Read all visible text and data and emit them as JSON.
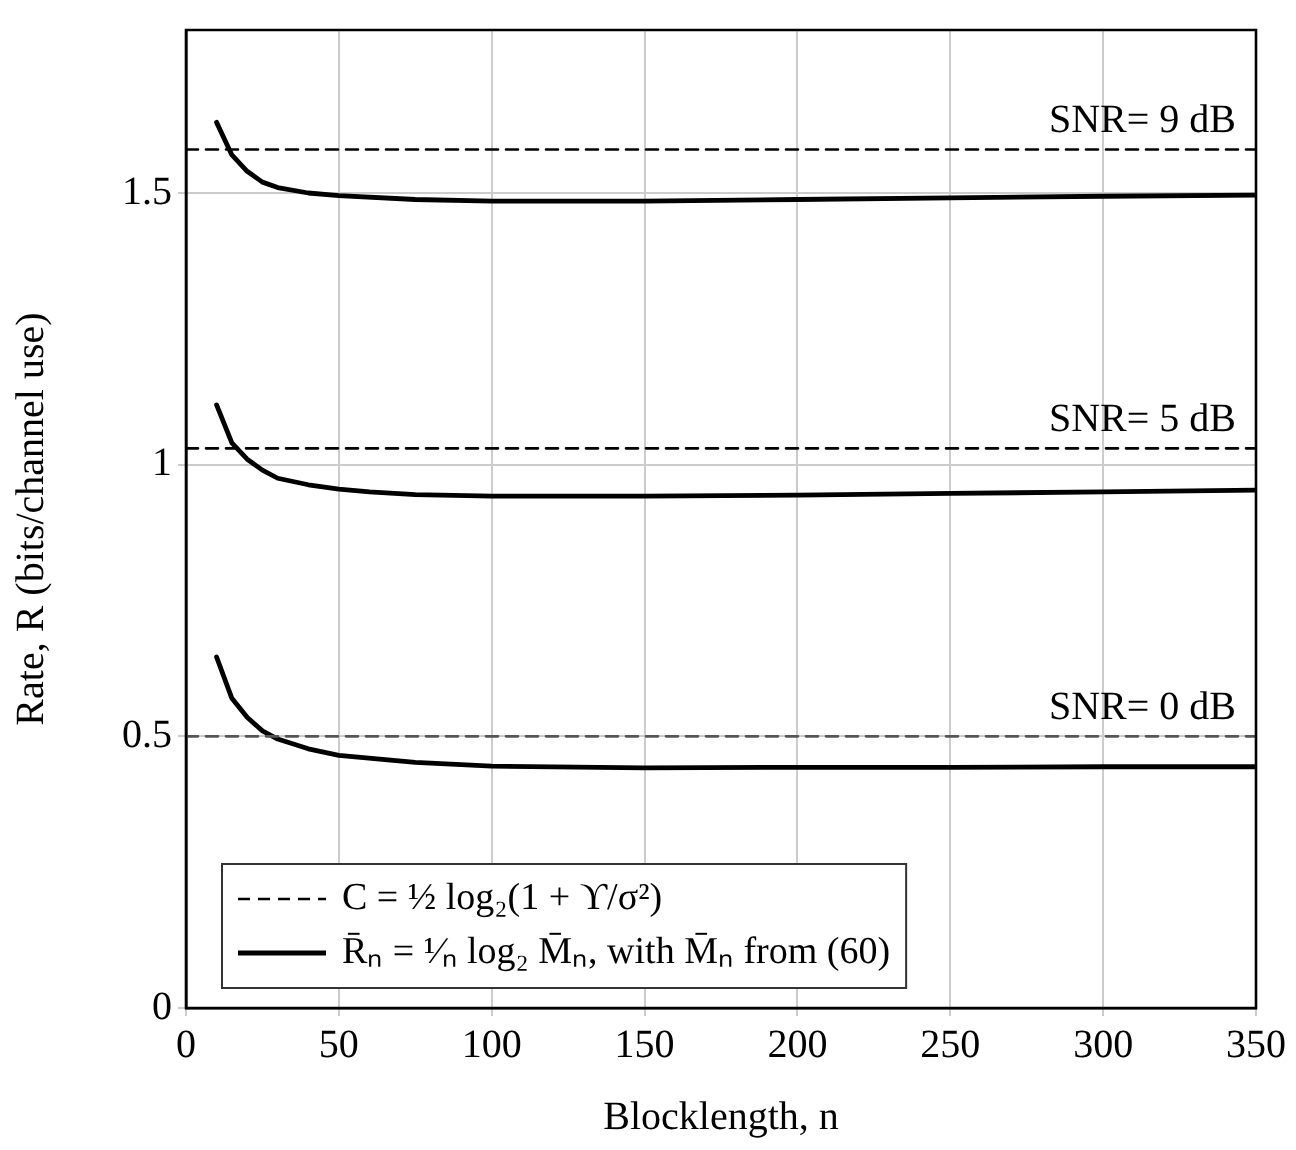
{
  "chart_data": {
    "type": "line",
    "xlabel": "Blocklength, n",
    "ylabel": "Rate, R (bits/channel use)",
    "xlim": [
      0,
      350
    ],
    "xticks": [
      0,
      50,
      100,
      150,
      200,
      250,
      300,
      350
    ],
    "ylim": [
      0,
      1.8
    ],
    "yticks": [
      0,
      0.5,
      1,
      1.5
    ],
    "grid": true,
    "legend": "bottom left",
    "marker": "none",
    "series": [
      {
        "name": "C = ½ log₂(1 + ϒ/σ²)",
        "color": "#000000",
        "line_style": "dashed",
        "x": [
          0,
          350
        ],
        "values": [
          1.58,
          1.58
        ]
      },
      {
        "color": "#000000",
        "line_style": "dashed",
        "x": [
          0,
          350
        ],
        "values": [
          1.03,
          1.03
        ]
      },
      {
        "color": "#555555",
        "line_style": "dashed",
        "x": [
          0,
          350
        ],
        "values": [
          0.5,
          0.5
        ]
      },
      {
        "name": "R̄ₙ = ¹⁄ₙ log₂ M̄ₙ, with M̄ₙ from (60)",
        "color": "#000000",
        "line_style": "solid",
        "x": [
          10,
          15,
          20,
          25,
          30,
          40,
          50,
          75,
          100,
          150,
          200,
          250,
          300,
          350
        ],
        "values": [
          1.63,
          1.57,
          1.54,
          1.52,
          1.51,
          1.5,
          1.495,
          1.488,
          1.485,
          1.485,
          1.488,
          1.491,
          1.494,
          1.496
        ]
      },
      {
        "color": "#000000",
        "line_style": "solid",
        "x": [
          10,
          15,
          20,
          25,
          30,
          40,
          50,
          60,
          75,
          100,
          150,
          200,
          250,
          300,
          350
        ],
        "values": [
          1.11,
          1.04,
          1.01,
          0.99,
          0.975,
          0.963,
          0.955,
          0.95,
          0.945,
          0.942,
          0.942,
          0.944,
          0.947,
          0.95,
          0.953
        ]
      },
      {
        "color": "#000000",
        "line_style": "solid",
        "x": [
          10,
          15,
          20,
          25,
          30,
          40,
          50,
          75,
          100,
          150,
          200,
          250,
          300,
          350
        ],
        "values": [
          0.646,
          0.57,
          0.535,
          0.51,
          0.495,
          0.477,
          0.465,
          0.452,
          0.445,
          0.442,
          0.443,
          0.443,
          0.444,
          0.444
        ]
      }
    ],
    "annotations": [
      {
        "text": "SNR= 9 dB",
        "y": 1.58
      },
      {
        "text": "SNR= 5 dB",
        "y": 1.03
      },
      {
        "text": "SNR= 0 dB",
        "y": 0.5
      }
    ]
  }
}
